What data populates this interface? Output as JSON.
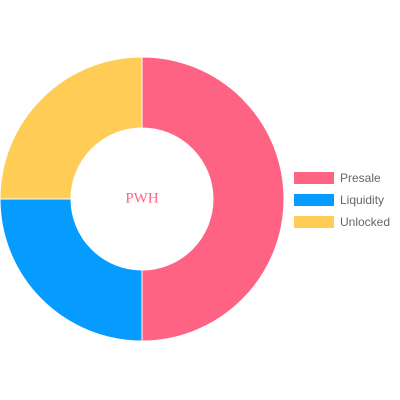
{
  "chart_data": {
    "type": "pie",
    "variant": "doughnut",
    "center_text": "PWH",
    "center_text_color": "#ff6384",
    "categories": [
      "Presale",
      "Liquidity",
      "Unlocked"
    ],
    "values": [
      50,
      25,
      25
    ],
    "colors": [
      "#ff6384",
      "#059bff",
      "#ffcd56"
    ],
    "legend_position": "right"
  }
}
